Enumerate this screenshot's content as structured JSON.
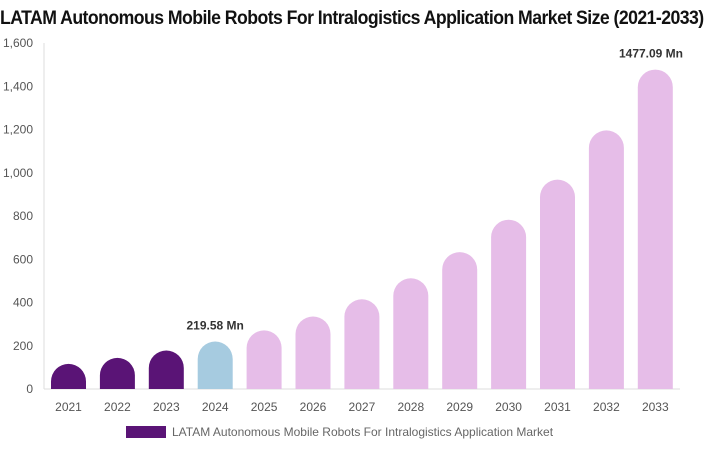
{
  "chart_data": {
    "type": "bar",
    "title": "LATAM Autonomous Mobile Robots For Intralogistics Application Market Size (2021-2033)",
    "categories": [
      "2021",
      "2022",
      "2023",
      "2024",
      "2025",
      "2026",
      "2027",
      "2028",
      "2029",
      "2030",
      "2031",
      "2032",
      "2033"
    ],
    "series": [
      {
        "name": "LATAM Autonomous Mobile Robots For Intralogistics Application Market",
        "values": [
          116,
          144,
          178,
          219.58,
          271,
          335,
          415,
          512,
          633,
          783,
          968,
          1196,
          1477.09
        ]
      }
    ],
    "data_labels": {
      "3": "219.58 Mn",
      "12": "1477.09 Mn"
    },
    "ylim": [
      0,
      1600
    ],
    "yticks": [
      "0",
      "200",
      "400",
      "600",
      "800",
      "1,000",
      "1,200",
      "1,400",
      "1,600"
    ],
    "ytick_values": [
      0,
      200,
      400,
      600,
      800,
      1000,
      1200,
      1400,
      1600
    ],
    "grid": false,
    "legend_position": "bottom",
    "colors": {
      "historical": "#5a1476",
      "base": "#a6cbe0",
      "forecast": "#e6bde8"
    }
  }
}
